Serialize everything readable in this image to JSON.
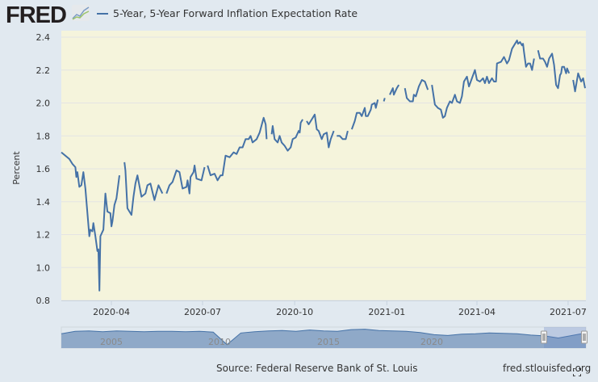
{
  "header": {
    "logo_text": "FRED"
  },
  "footer": {
    "source": "Source: Federal Reserve Bank of St. Louis",
    "site": "fred.stlouisfed.org"
  },
  "colors": {
    "line": "#4572a7",
    "plot_bg": "#f5f4dc",
    "page_bg": "#e1e9f0",
    "navigator_fill": "#8fa9c8"
  },
  "chart_data": {
    "type": "line",
    "title": "",
    "xlabel": "",
    "ylabel": "Percent",
    "ylim": [
      0.8,
      2.4
    ],
    "xlim": [
      "2020-02-11",
      "2021-07-18"
    ],
    "grid": true,
    "legend": "top-left",
    "yticks": [
      "0.8",
      "1.0",
      "1.2",
      "1.4",
      "1.6",
      "1.8",
      "2.0",
      "2.2",
      "2.4"
    ],
    "xticks": [
      "2020-04",
      "2020-07",
      "2020-10",
      "2021-01",
      "2021-04",
      "2021-07"
    ],
    "series": [
      {
        "name": "5-Year, 5-Year Forward Inflation Expectation Rate",
        "points": [
          [
            "2020-02-11",
            1.7
          ],
          [
            "2020-02-19",
            1.66
          ],
          [
            "2020-02-22",
            1.63
          ],
          [
            "2020-02-25",
            1.61
          ],
          [
            "2020-02-26",
            1.55
          ],
          [
            "2020-02-27",
            1.58
          ],
          [
            "2020-02-29",
            1.49
          ],
          [
            "2020-03-02",
            1.5
          ],
          [
            "2020-03-04",
            1.58
          ],
          [
            "2020-03-06",
            1.48
          ],
          [
            "2020-03-10",
            1.19
          ],
          [
            "2020-03-11",
            1.23
          ],
          [
            "2020-03-13",
            1.22
          ],
          [
            "2020-03-14",
            1.27
          ],
          [
            "2020-03-16",
            1.19
          ],
          [
            "2020-03-18",
            1.1
          ],
          [
            "2020-03-19",
            1.11
          ],
          [
            "2020-03-20",
            0.86
          ],
          [
            "2020-03-21",
            1.19
          ],
          [
            "2020-03-24",
            1.23
          ],
          [
            "2020-03-26",
            1.45
          ],
          [
            "2020-03-28",
            1.34
          ],
          [
            "2020-03-31",
            1.33
          ],
          [
            "2020-04-01",
            1.25
          ],
          [
            "2020-04-02",
            1.28
          ],
          [
            "2020-04-04",
            1.38
          ],
          [
            "2020-04-06",
            1.42
          ],
          [
            "2020-04-09",
            1.56
          ],
          [
            "2020-04-10",
            null
          ],
          [
            "2020-04-14",
            1.64
          ],
          [
            "2020-04-15",
            1.59
          ],
          [
            "2020-04-17",
            1.36
          ],
          [
            "2020-04-21",
            1.32
          ],
          [
            "2020-04-23",
            1.43
          ],
          [
            "2020-04-25",
            1.51
          ],
          [
            "2020-04-27",
            1.56
          ],
          [
            "2020-05-01",
            1.43
          ],
          [
            "2020-05-05",
            1.45
          ],
          [
            "2020-05-07",
            1.5
          ],
          [
            "2020-05-10",
            1.51
          ],
          [
            "2020-05-14",
            1.41
          ],
          [
            "2020-05-18",
            1.5
          ],
          [
            "2020-05-22",
            1.45
          ],
          [
            "2020-05-24",
            null
          ],
          [
            "2020-05-26",
            1.45
          ],
          [
            "2020-05-29",
            1.5
          ],
          [
            "2020-06-01",
            1.52
          ],
          [
            "2020-06-05",
            1.59
          ],
          [
            "2020-06-08",
            1.58
          ],
          [
            "2020-06-11",
            1.48
          ],
          [
            "2020-06-15",
            1.49
          ],
          [
            "2020-06-16",
            1.53
          ],
          [
            "2020-06-18",
            1.45
          ],
          [
            "2020-06-19",
            1.55
          ],
          [
            "2020-06-22",
            1.58
          ],
          [
            "2020-06-23",
            1.62
          ],
          [
            "2020-06-25",
            1.54
          ],
          [
            "2020-06-30",
            1.53
          ],
          [
            "2020-07-03",
            1.61
          ],
          [
            "2020-07-04",
            null
          ],
          [
            "2020-07-06",
            1.62
          ],
          [
            "2020-07-09",
            1.56
          ],
          [
            "2020-07-13",
            1.57
          ],
          [
            "2020-07-16",
            1.53
          ],
          [
            "2020-07-19",
            1.56
          ],
          [
            "2020-07-21",
            1.56
          ],
          [
            "2020-07-24",
            1.68
          ],
          [
            "2020-07-28",
            1.67
          ],
          [
            "2020-08-01",
            1.7
          ],
          [
            "2020-08-04",
            1.69
          ],
          [
            "2020-08-07",
            1.73
          ],
          [
            "2020-08-10",
            1.73
          ],
          [
            "2020-08-13",
            1.78
          ],
          [
            "2020-08-16",
            1.78
          ],
          [
            "2020-08-18",
            1.8
          ],
          [
            "2020-08-20",
            1.76
          ],
          [
            "2020-08-24",
            1.78
          ],
          [
            "2020-08-27",
            1.82
          ],
          [
            "2020-08-31",
            1.91
          ],
          [
            "2020-09-02",
            1.87
          ],
          [
            "2020-09-03",
            1.78
          ],
          [
            "2020-09-05",
            null
          ],
          [
            "2020-09-08",
            1.81
          ],
          [
            "2020-09-09",
            1.86
          ],
          [
            "2020-09-11",
            1.78
          ],
          [
            "2020-09-14",
            1.76
          ],
          [
            "2020-09-16",
            1.8
          ],
          [
            "2020-09-18",
            1.76
          ],
          [
            "2020-09-21",
            1.74
          ],
          [
            "2020-09-24",
            1.71
          ],
          [
            "2020-09-27",
            1.73
          ],
          [
            "2020-09-29",
            1.78
          ],
          [
            "2020-10-02",
            1.79
          ],
          [
            "2020-10-05",
            1.83
          ],
          [
            "2020-10-06",
            1.82
          ],
          [
            "2020-10-07",
            1.88
          ],
          [
            "2020-10-09",
            1.9
          ],
          [
            "2020-10-11",
            null
          ],
          [
            "2020-10-13",
            1.89
          ],
          [
            "2020-10-15",
            1.87
          ],
          [
            "2020-10-18",
            1.9
          ],
          [
            "2020-10-21",
            1.93
          ],
          [
            "2020-10-23",
            1.84
          ],
          [
            "2020-10-25",
            1.83
          ],
          [
            "2020-10-28",
            1.78
          ],
          [
            "2020-10-30",
            1.81
          ],
          [
            "2020-11-02",
            1.82
          ],
          [
            "2020-11-04",
            1.73
          ],
          [
            "2020-11-06",
            1.78
          ],
          [
            "2020-11-09",
            1.83
          ],
          [
            "2020-11-10",
            null
          ],
          [
            "2020-11-12",
            1.8
          ],
          [
            "2020-11-15",
            1.8
          ],
          [
            "2020-11-18",
            1.78
          ],
          [
            "2020-11-21",
            1.78
          ],
          [
            "2020-11-23",
            1.83
          ],
          [
            "2020-11-25",
            null
          ],
          [
            "2020-11-27",
            1.84
          ],
          [
            "2020-11-30",
            1.89
          ],
          [
            "2020-12-02",
            1.94
          ],
          [
            "2020-12-05",
            1.94
          ],
          [
            "2020-12-07",
            1.92
          ],
          [
            "2020-12-10",
            1.97
          ],
          [
            "2020-12-11",
            1.92
          ],
          [
            "2020-12-13",
            1.92
          ],
          [
            "2020-12-16",
            1.96
          ],
          [
            "2020-12-17",
            1.99
          ],
          [
            "2020-12-20",
            2.0
          ],
          [
            "2020-12-21",
            1.97
          ],
          [
            "2020-12-23",
            2.02
          ],
          [
            "2020-12-25",
            null
          ],
          [
            "2020-12-29",
            2.01
          ],
          [
            "2020-12-30",
            2.03
          ],
          [
            "2021-01-01",
            null
          ],
          [
            "2021-01-04",
            2.05
          ],
          [
            "2021-01-07",
            2.09
          ],
          [
            "2021-01-08",
            2.05
          ],
          [
            "2021-01-11",
            2.09
          ],
          [
            "2021-01-13",
            2.11
          ],
          [
            "2021-01-16",
            null
          ],
          [
            "2021-01-19",
            2.09
          ],
          [
            "2021-01-21",
            2.03
          ],
          [
            "2021-01-24",
            2.01
          ],
          [
            "2021-01-27",
            2.01
          ],
          [
            "2021-01-28",
            2.05
          ],
          [
            "2021-01-30",
            2.04
          ],
          [
            "2021-02-02",
            2.1
          ],
          [
            "2021-02-05",
            2.14
          ],
          [
            "2021-02-08",
            2.13
          ],
          [
            "2021-02-11",
            2.08
          ],
          [
            "2021-02-13",
            null
          ],
          [
            "2021-02-15",
            2.11
          ],
          [
            "2021-02-18",
            1.99
          ],
          [
            "2021-02-21",
            1.97
          ],
          [
            "2021-02-24",
            1.96
          ],
          [
            "2021-02-26",
            1.91
          ],
          [
            "2021-02-28",
            1.92
          ],
          [
            "2021-03-02",
            1.97
          ],
          [
            "2021-03-05",
            2.01
          ],
          [
            "2021-03-07",
            2.0
          ],
          [
            "2021-03-10",
            2.05
          ],
          [
            "2021-03-12",
            2.01
          ],
          [
            "2021-03-15",
            2.0
          ],
          [
            "2021-03-17",
            2.04
          ],
          [
            "2021-03-19",
            2.13
          ],
          [
            "2021-03-22",
            2.16
          ],
          [
            "2021-03-24",
            2.1
          ],
          [
            "2021-03-27",
            2.15
          ],
          [
            "2021-03-30",
            2.2
          ],
          [
            "2021-04-01",
            2.14
          ],
          [
            "2021-04-04",
            2.13
          ],
          [
            "2021-04-07",
            2.15
          ],
          [
            "2021-04-09",
            2.12
          ],
          [
            "2021-04-11",
            2.16
          ],
          [
            "2021-04-13",
            2.12
          ],
          [
            "2021-04-16",
            2.15
          ],
          [
            "2021-04-18",
            2.13
          ],
          [
            "2021-04-20",
            2.13
          ],
          [
            "2021-04-21",
            2.24
          ],
          [
            "2021-04-25",
            2.25
          ],
          [
            "2021-04-28",
            2.28
          ],
          [
            "2021-05-01",
            2.24
          ],
          [
            "2021-05-03",
            2.26
          ],
          [
            "2021-05-06",
            2.33
          ],
          [
            "2021-05-09",
            2.36
          ],
          [
            "2021-05-11",
            2.38
          ],
          [
            "2021-05-12",
            2.36
          ],
          [
            "2021-05-14",
            2.37
          ],
          [
            "2021-05-16",
            2.35
          ],
          [
            "2021-05-17",
            2.36
          ],
          [
            "2021-05-18",
            2.31
          ],
          [
            "2021-05-20",
            2.22
          ],
          [
            "2021-05-22",
            2.24
          ],
          [
            "2021-05-24",
            2.24
          ],
          [
            "2021-05-26",
            2.2
          ],
          [
            "2021-05-28",
            2.27
          ],
          [
            "2021-05-30",
            null
          ],
          [
            "2021-06-01",
            2.32
          ],
          [
            "2021-06-03",
            2.27
          ],
          [
            "2021-06-06",
            2.27
          ],
          [
            "2021-06-08",
            2.25
          ],
          [
            "2021-06-10",
            2.22
          ],
          [
            "2021-06-12",
            2.27
          ],
          [
            "2021-06-15",
            2.3
          ],
          [
            "2021-06-17",
            2.23
          ],
          [
            "2021-06-19",
            2.11
          ],
          [
            "2021-06-21",
            2.09
          ],
          [
            "2021-06-23",
            2.17
          ],
          [
            "2021-06-24",
            2.18
          ],
          [
            "2021-06-25",
            2.22
          ],
          [
            "2021-06-27",
            2.22
          ],
          [
            "2021-06-29",
            2.18
          ],
          [
            "2021-06-30",
            2.21
          ],
          [
            "2021-07-02",
            2.18
          ],
          [
            "2021-07-04",
            null
          ],
          [
            "2021-07-06",
            2.14
          ],
          [
            "2021-07-08",
            2.07
          ],
          [
            "2021-07-11",
            2.18
          ],
          [
            "2021-07-14",
            2.13
          ],
          [
            "2021-07-16",
            2.15
          ],
          [
            "2021-07-18",
            2.09
          ]
        ]
      }
    ],
    "navigator": {
      "labels": [
        "2005",
        "2010",
        "2015",
        "2020"
      ],
      "values": [
        2.2,
        2.5,
        2.55,
        2.45,
        2.55,
        2.5,
        2.45,
        2.5,
        2.5,
        2.45,
        2.5,
        2.4,
        0.9,
        2.3,
        2.45,
        2.55,
        2.6,
        2.5,
        2.65,
        2.55,
        2.5,
        2.7,
        2.75,
        2.6,
        2.55,
        2.5,
        2.35,
        2.1,
        2.0,
        2.15,
        2.2,
        2.3,
        2.25,
        2.2,
        2.05,
        1.95,
        1.7,
        2.0,
        2.3
      ]
    }
  }
}
